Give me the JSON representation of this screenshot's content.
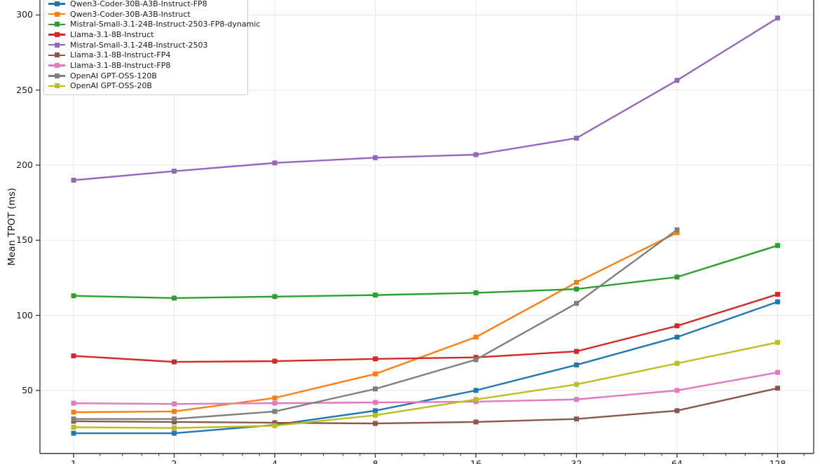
{
  "colors": {
    "background": "#ffffff",
    "grid": "#e7e7e7",
    "spine": "#555555",
    "tick": "#333333",
    "text": "#1a1a1a",
    "legend_border": "#cccccc"
  },
  "chart_data": {
    "type": "line",
    "title": "",
    "xlabel": "",
    "ylabel": "Mean TPOT (ms)",
    "xscale": "log2",
    "x": [
      1,
      2,
      4,
      8,
      16,
      32,
      64,
      128
    ],
    "xticklabels": [
      "1",
      "2",
      "4",
      "8",
      "16",
      "32",
      "64",
      "128"
    ],
    "yticks": [
      50,
      100,
      150,
      200,
      250,
      300
    ],
    "ylim": [
      8,
      310
    ],
    "grid": true,
    "legend_position": "upper-left",
    "marker": "square",
    "series": [
      {
        "name": "Qwen3-Coder-30B-A3B-Instruct-FP8",
        "color": "#1f77b4",
        "values": [
          21.5,
          21.5,
          27,
          36.5,
          50,
          67,
          85.5,
          109
        ]
      },
      {
        "name": "Qwen3-Coder-30B-A3B-Instruct",
        "color": "#ff7f0e",
        "values": [
          35.5,
          36,
          45,
          61,
          85.5,
          122,
          155,
          null
        ]
      },
      {
        "name": "Mistral-Small-3.1-24B-Instruct-2503-FP8-dynamic",
        "color": "#2ca02c",
        "values": [
          113,
          111.5,
          112.5,
          113.5,
          115,
          117.5,
          125.5,
          146.5
        ]
      },
      {
        "name": "Llama-3.1-8B-Instruct",
        "color": "#d62728",
        "values": [
          73,
          69,
          69.5,
          71,
          72,
          76,
          93,
          114
        ]
      },
      {
        "name": "Mistral-Small-3.1-24B-Instruct-2503",
        "color": "#9467bd",
        "values": [
          190,
          196,
          201.5,
          205,
          207,
          218,
          256.5,
          298
        ]
      },
      {
        "name": "Llama-3.1-8B-Instruct-FP4",
        "color": "#8c564b",
        "values": [
          29.5,
          29,
          28.5,
          28,
          29,
          31,
          36.5,
          51.5
        ]
      },
      {
        "name": "Llama-3.1-8B-Instruct-FP8",
        "color": "#e377c2",
        "values": [
          41.5,
          41,
          41.5,
          42,
          42.5,
          44,
          50,
          62
        ]
      },
      {
        "name": "OpenAI GPT-OSS-120B",
        "color": "#7f7f7f",
        "values": [
          31,
          31,
          36,
          51,
          70.5,
          108,
          157,
          null
        ]
      },
      {
        "name": "OpenAI GPT-OSS-20B",
        "color": "#bcbd22",
        "values": [
          25.5,
          25,
          26.5,
          33.5,
          44,
          54,
          68,
          82
        ]
      }
    ]
  }
}
